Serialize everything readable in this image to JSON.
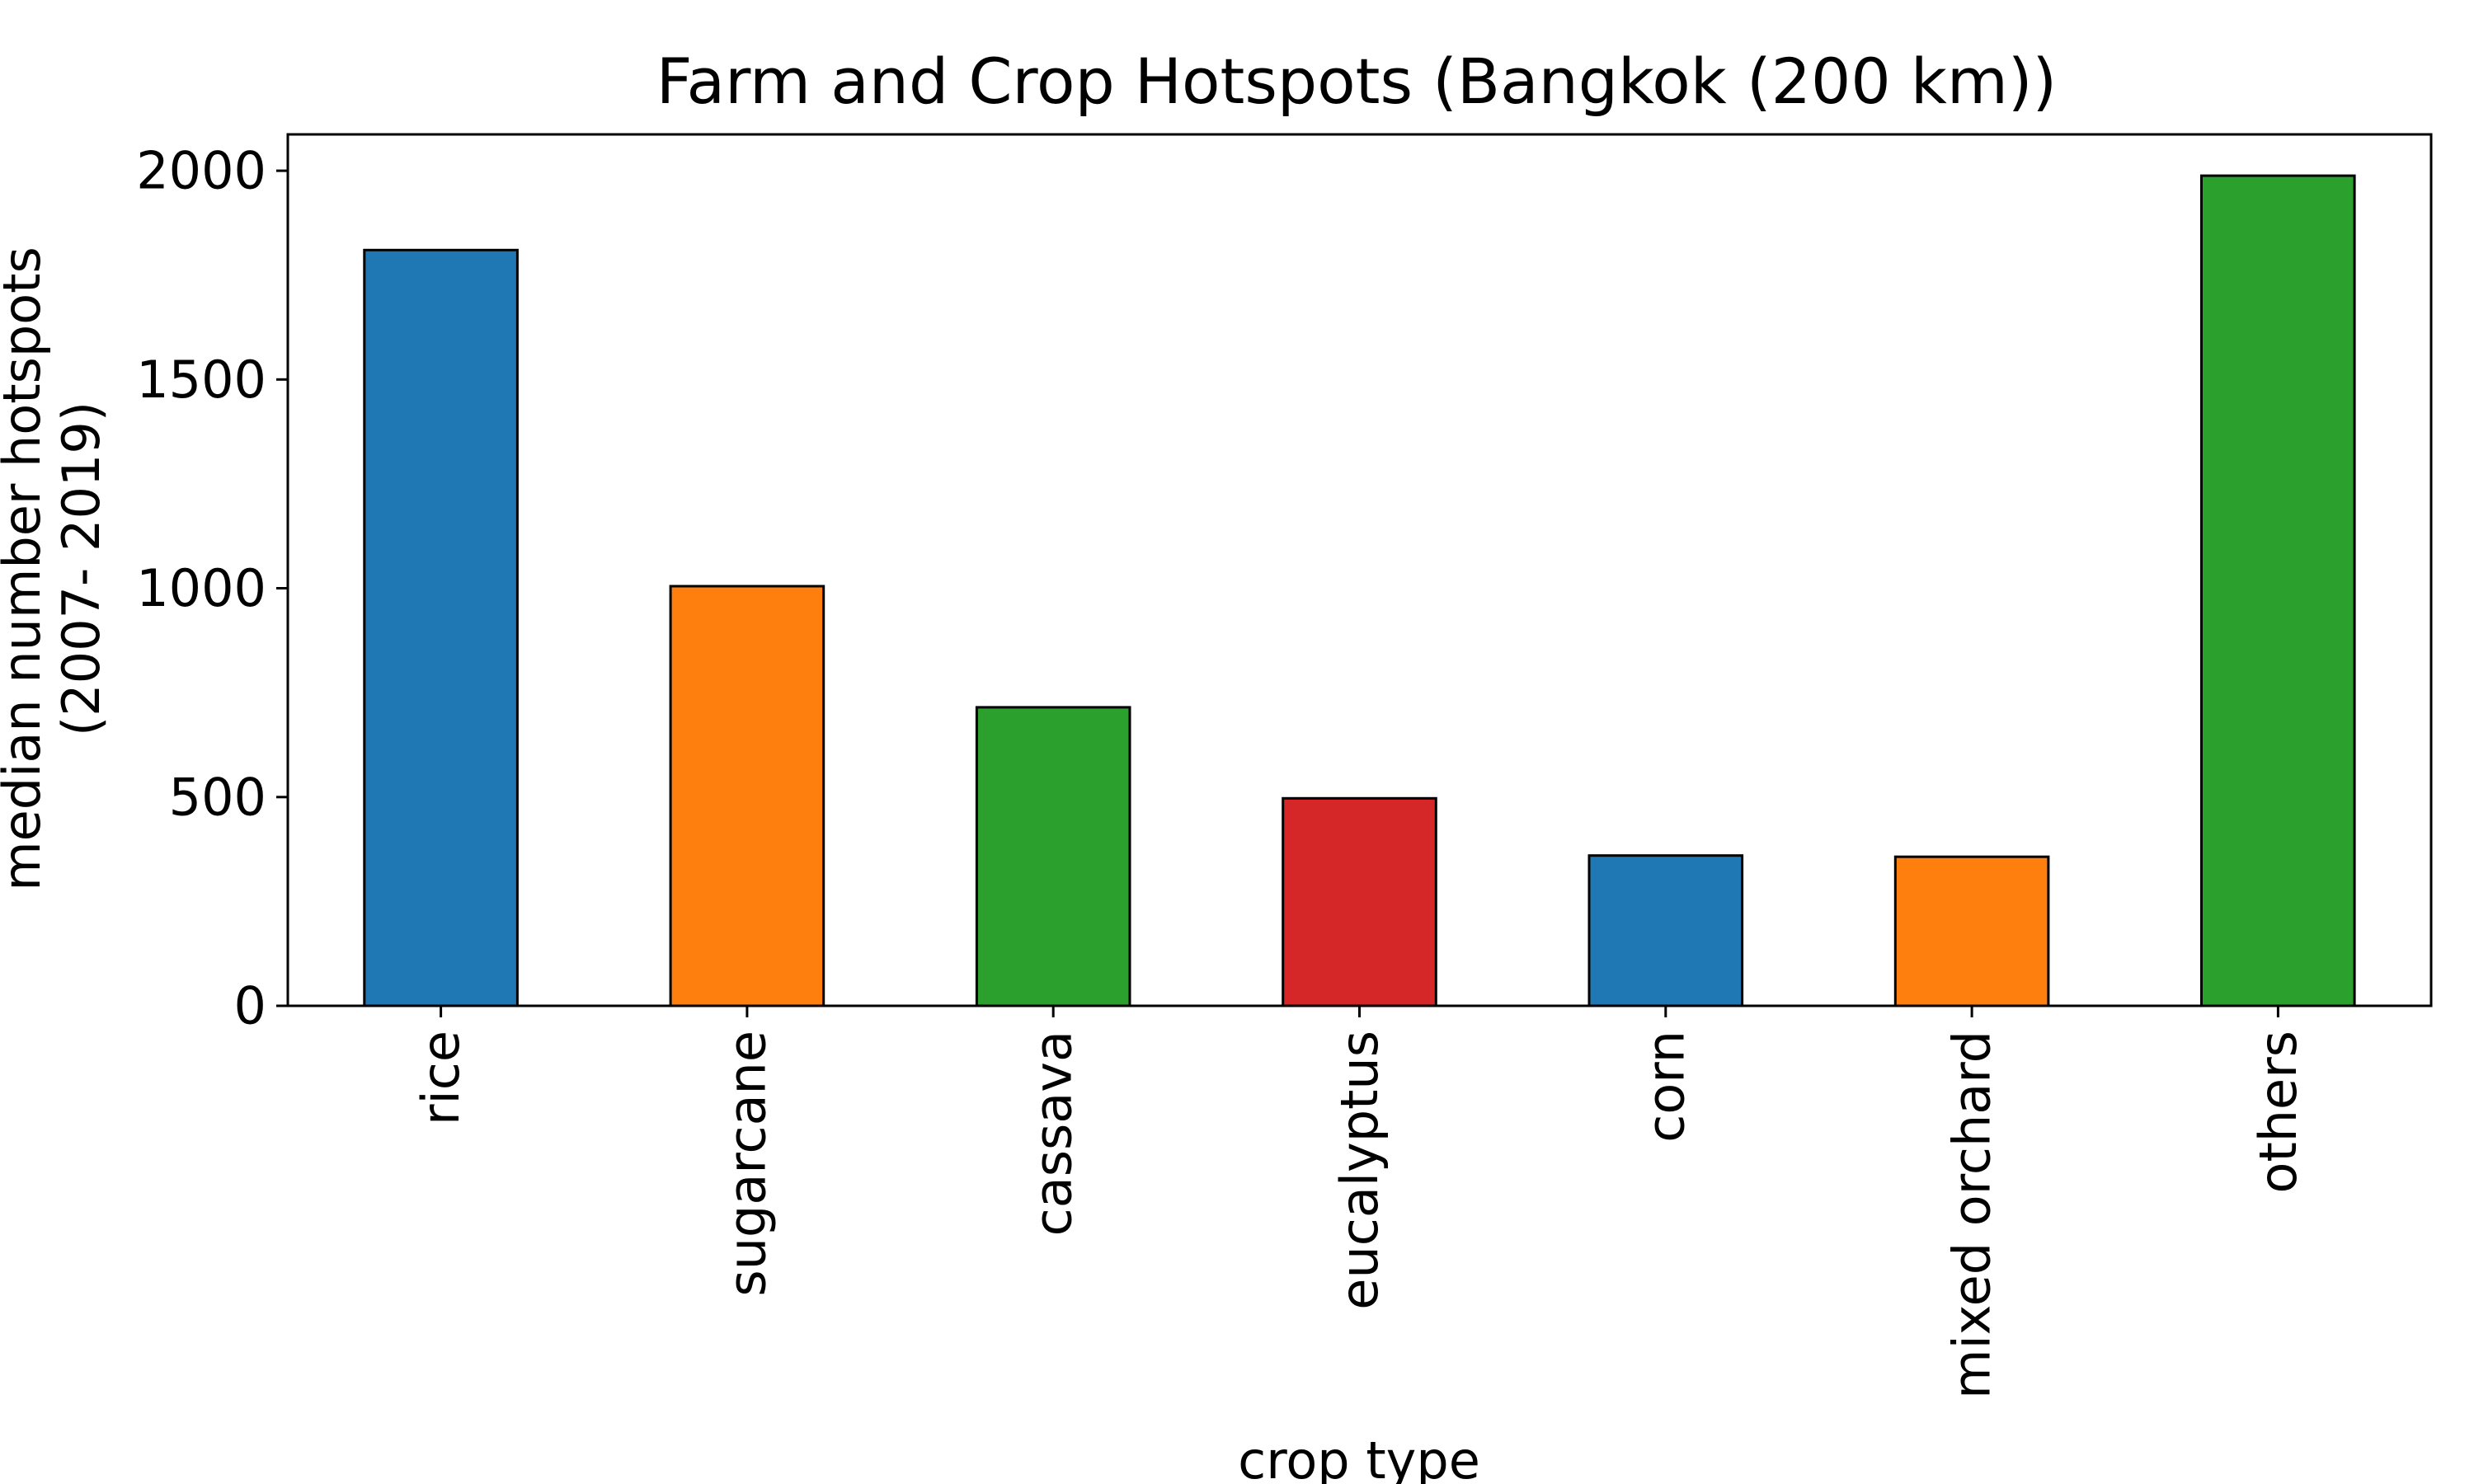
{
  "chart_data": {
    "type": "bar",
    "title": "Farm and Crop Hotspots (Bangkok (200 km))",
    "xlabel": "crop type",
    "ylabel_lines": [
      "median number hotspots",
      "(2007- 2019)"
    ],
    "categories": [
      "rice",
      "sugarcane",
      "cassava",
      "eucalyptus",
      "corn",
      "mixed orchard",
      "others"
    ],
    "values": [
      1810,
      1005,
      715,
      497,
      360,
      357,
      1988
    ],
    "bar_colors": [
      "#1f77b4",
      "#ff7f0e",
      "#2ca02c",
      "#d62728",
      "#1f77b4",
      "#ff7f0e",
      "#2ca02c"
    ],
    "yticks": [
      0,
      500,
      1000,
      1500,
      2000
    ],
    "ylim": [
      0,
      2087
    ],
    "grid": false,
    "legend": false
  }
}
